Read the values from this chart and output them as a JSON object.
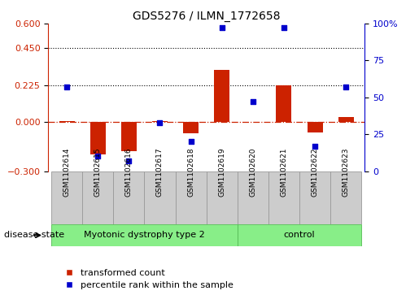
{
  "title": "GDS5276 / ILMN_1772658",
  "samples": [
    "GSM1102614",
    "GSM1102615",
    "GSM1102616",
    "GSM1102617",
    "GSM1102618",
    "GSM1102619",
    "GSM1102620",
    "GSM1102621",
    "GSM1102622",
    "GSM1102623"
  ],
  "red_values": [
    0.005,
    -0.2,
    -0.18,
    0.003,
    -0.07,
    0.32,
    0.002,
    0.225,
    -0.065,
    0.03
  ],
  "blue_values": [
    57,
    10,
    7,
    33,
    20,
    97,
    47,
    97,
    17,
    57
  ],
  "left_ylim": [
    -0.3,
    0.6
  ],
  "right_ylim": [
    0,
    100
  ],
  "left_yticks": [
    -0.3,
    0.0,
    0.225,
    0.45,
    0.6
  ],
  "right_yticks": [
    0,
    25,
    50,
    75,
    100
  ],
  "right_yticklabels": [
    "0",
    "25",
    "50",
    "75",
    "100%"
  ],
  "hlines": [
    0.225,
    0.45
  ],
  "group1_label": "Myotonic dystrophy type 2",
  "group2_label": "control",
  "group1_count": 6,
  "group2_count": 4,
  "disease_state_label": "disease state",
  "legend1_label": "transformed count",
  "legend2_label": "percentile rank within the sample",
  "red_color": "#CC2200",
  "blue_color": "#0000CC",
  "group_color": "#88EE88",
  "bar_bg_color": "#CCCCCC",
  "zero_line_color": "#CC2200",
  "hline_color": "#000000",
  "bar_width": 0.5
}
